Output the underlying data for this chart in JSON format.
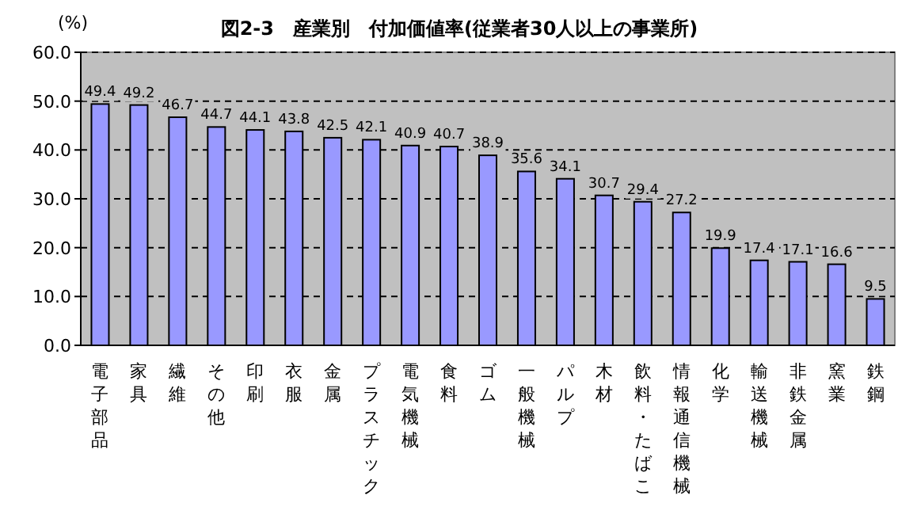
{
  "chart_data": {
    "type": "bar",
    "title": "図2-3　産業別　付加価値率(従業者30人以上の事業所)",
    "ylabel": "(%)",
    "categories": [
      "電子部品",
      "家具",
      "繊維",
      "その他",
      "印刷",
      "衣服",
      "金属",
      "プラスチック",
      "電気機械",
      "食料",
      "ゴム",
      "一般機械",
      "パルプ",
      "木材",
      "飲料・たばこ",
      "情報通信機械",
      "化学",
      "輸送機械",
      "非鉄金属",
      "窯業",
      "鉄鋼"
    ],
    "values": [
      49.4,
      49.2,
      46.7,
      44.7,
      44.1,
      43.8,
      42.5,
      42.1,
      40.9,
      40.7,
      38.9,
      35.6,
      34.1,
      30.7,
      29.4,
      27.2,
      19.9,
      17.4,
      17.1,
      16.6,
      9.5
    ],
    "color": "#9999ff",
    "ylim": [
      0,
      60
    ],
    "yticks": [
      {
        "value": 0,
        "label": "0.0"
      },
      {
        "value": 10,
        "label": "10.0"
      },
      {
        "value": 20,
        "label": "20.0"
      },
      {
        "value": 30,
        "label": "30.0"
      },
      {
        "value": 40,
        "label": "40.0"
      },
      {
        "value": 50,
        "label": "50.0"
      },
      {
        "value": 60,
        "label": "60.0"
      }
    ],
    "grid": "y",
    "line_style": "dashed",
    "data_labels": true
  }
}
